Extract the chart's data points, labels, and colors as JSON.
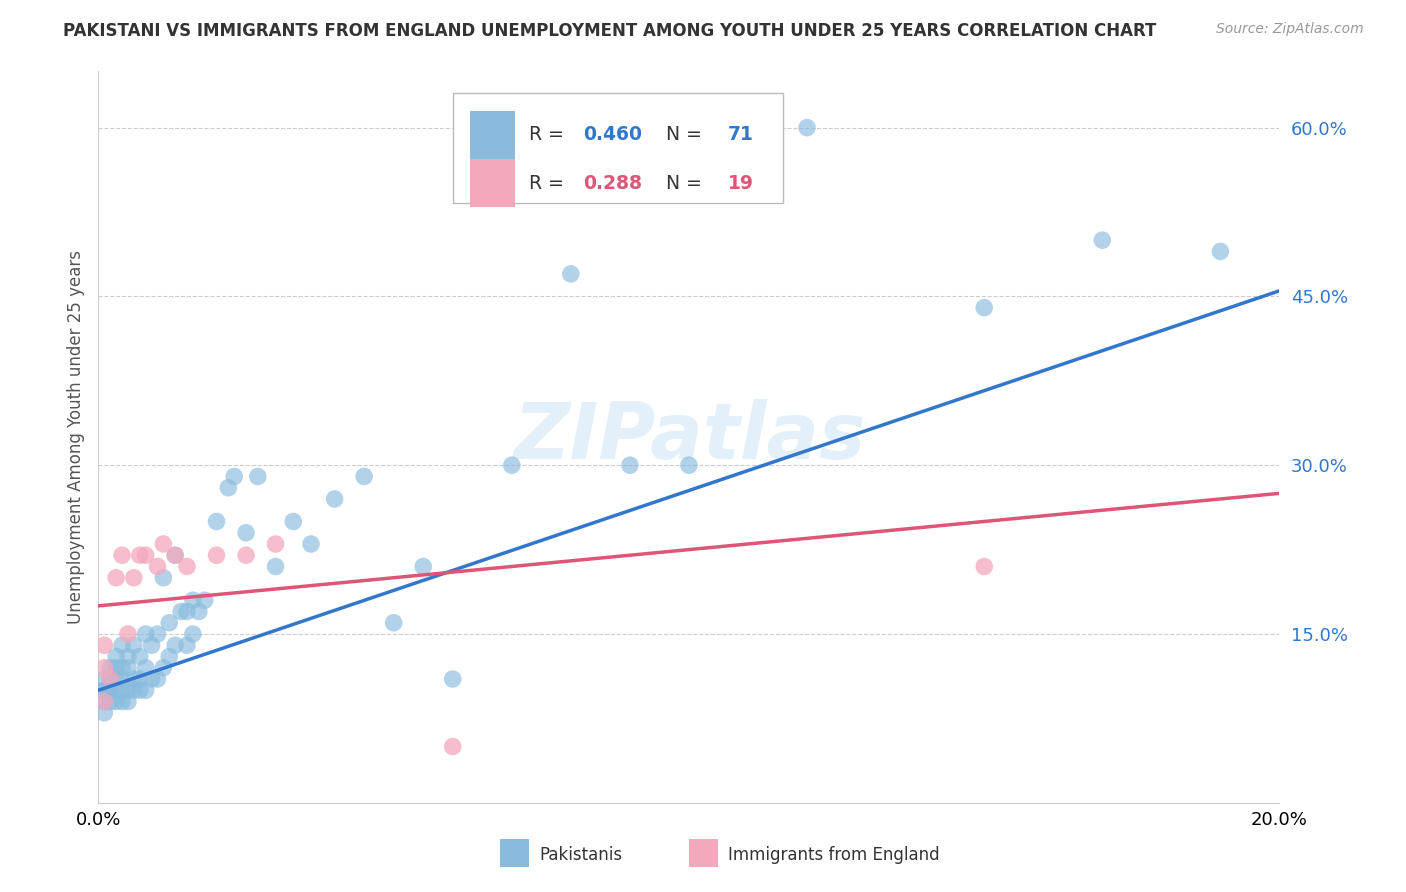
{
  "title": "PAKISTANI VS IMMIGRANTS FROM ENGLAND UNEMPLOYMENT AMONG YOUTH UNDER 25 YEARS CORRELATION CHART",
  "source": "Source: ZipAtlas.com",
  "ylabel": "Unemployment Among Youth under 25 years",
  "xlim": [
    0.0,
    0.2
  ],
  "ylim": [
    0.0,
    0.65
  ],
  "yticks": [
    0.15,
    0.3,
    0.45,
    0.6
  ],
  "blue_R": 0.46,
  "blue_N": 71,
  "pink_R": 0.288,
  "pink_N": 19,
  "blue_color": "#88bbdd",
  "pink_color": "#f4a8bc",
  "blue_line_color": "#3377cc",
  "pink_line_color": "#dd5577",
  "watermark": "ZIPatlas",
  "legend_label_blue": "Pakistanis",
  "legend_label_pink": "Immigrants from England",
  "blue_line_x0": 0.0,
  "blue_line_y0": 0.1,
  "blue_line_x1": 0.2,
  "blue_line_y1": 0.455,
  "pink_line_x0": 0.0,
  "pink_line_y0": 0.175,
  "pink_line_x1": 0.2,
  "pink_line_y1": 0.275,
  "pakistanis_x": [
    0.001,
    0.001,
    0.001,
    0.001,
    0.001,
    0.002,
    0.002,
    0.002,
    0.002,
    0.002,
    0.003,
    0.003,
    0.003,
    0.003,
    0.003,
    0.004,
    0.004,
    0.004,
    0.004,
    0.004,
    0.005,
    0.005,
    0.005,
    0.005,
    0.006,
    0.006,
    0.006,
    0.007,
    0.007,
    0.007,
    0.008,
    0.008,
    0.008,
    0.009,
    0.009,
    0.01,
    0.01,
    0.011,
    0.011,
    0.012,
    0.012,
    0.013,
    0.013,
    0.014,
    0.015,
    0.015,
    0.016,
    0.016,
    0.017,
    0.018,
    0.02,
    0.022,
    0.023,
    0.025,
    0.027,
    0.03,
    0.033,
    0.036,
    0.04,
    0.045,
    0.05,
    0.055,
    0.06,
    0.07,
    0.08,
    0.09,
    0.1,
    0.12,
    0.15,
    0.17,
    0.19
  ],
  "pakistanis_y": [
    0.08,
    0.09,
    0.1,
    0.1,
    0.11,
    0.09,
    0.1,
    0.1,
    0.11,
    0.12,
    0.09,
    0.1,
    0.11,
    0.12,
    0.13,
    0.09,
    0.1,
    0.11,
    0.12,
    0.14,
    0.09,
    0.1,
    0.12,
    0.13,
    0.1,
    0.11,
    0.14,
    0.1,
    0.11,
    0.13,
    0.1,
    0.12,
    0.15,
    0.11,
    0.14,
    0.11,
    0.15,
    0.12,
    0.2,
    0.13,
    0.16,
    0.14,
    0.22,
    0.17,
    0.14,
    0.17,
    0.15,
    0.18,
    0.17,
    0.18,
    0.25,
    0.28,
    0.29,
    0.24,
    0.29,
    0.21,
    0.25,
    0.23,
    0.27,
    0.29,
    0.16,
    0.21,
    0.11,
    0.3,
    0.47,
    0.3,
    0.3,
    0.6,
    0.44,
    0.5,
    0.49
  ],
  "england_x": [
    0.001,
    0.001,
    0.001,
    0.002,
    0.003,
    0.004,
    0.005,
    0.006,
    0.007,
    0.008,
    0.01,
    0.011,
    0.013,
    0.015,
    0.02,
    0.025,
    0.03,
    0.06,
    0.15
  ],
  "england_y": [
    0.09,
    0.12,
    0.14,
    0.11,
    0.2,
    0.22,
    0.15,
    0.2,
    0.22,
    0.22,
    0.21,
    0.23,
    0.22,
    0.21,
    0.22,
    0.22,
    0.23,
    0.05,
    0.21
  ]
}
